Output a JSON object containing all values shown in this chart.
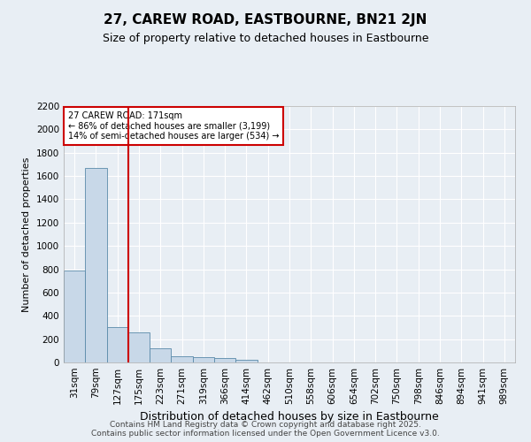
{
  "title": "27, CAREW ROAD, EASTBOURNE, BN21 2JN",
  "subtitle": "Size of property relative to detached houses in Eastbourne",
  "xlabel": "Distribution of detached houses by size in Eastbourne",
  "ylabel": "Number of detached properties",
  "categories": [
    "31sqm",
    "79sqm",
    "127sqm",
    "175sqm",
    "223sqm",
    "271sqm",
    "319sqm",
    "366sqm",
    "414sqm",
    "462sqm",
    "510sqm",
    "558sqm",
    "606sqm",
    "654sqm",
    "702sqm",
    "750sqm",
    "798sqm",
    "846sqm",
    "894sqm",
    "941sqm",
    "989sqm"
  ],
  "values": [
    790,
    1670,
    305,
    260,
    120,
    50,
    45,
    35,
    25,
    3,
    0,
    0,
    0,
    0,
    0,
    0,
    0,
    0,
    0,
    0,
    0
  ],
  "bar_color": "#c8d8e8",
  "bar_edge_color": "#5a8aaa",
  "vline_x_index": 2,
  "vline_color": "#cc0000",
  "annotation_text": "27 CAREW ROAD: 171sqm\n← 86% of detached houses are smaller (3,199)\n14% of semi-detached houses are larger (534) →",
  "annotation_box_color": "#ffffff",
  "annotation_box_edge_color": "#cc0000",
  "ylim": [
    0,
    2200
  ],
  "yticks": [
    0,
    200,
    400,
    600,
    800,
    1000,
    1200,
    1400,
    1600,
    1800,
    2000,
    2200
  ],
  "background_color": "#e8eef4",
  "plot_background_color": "#e8eef4",
  "grid_color": "#ffffff",
  "footer_line1": "Contains HM Land Registry data © Crown copyright and database right 2025.",
  "footer_line2": "Contains public sector information licensed under the Open Government Licence v3.0.",
  "title_fontsize": 11,
  "subtitle_fontsize": 9,
  "xlabel_fontsize": 9,
  "ylabel_fontsize": 8,
  "tick_fontsize": 7.5,
  "footer_fontsize": 6.5
}
